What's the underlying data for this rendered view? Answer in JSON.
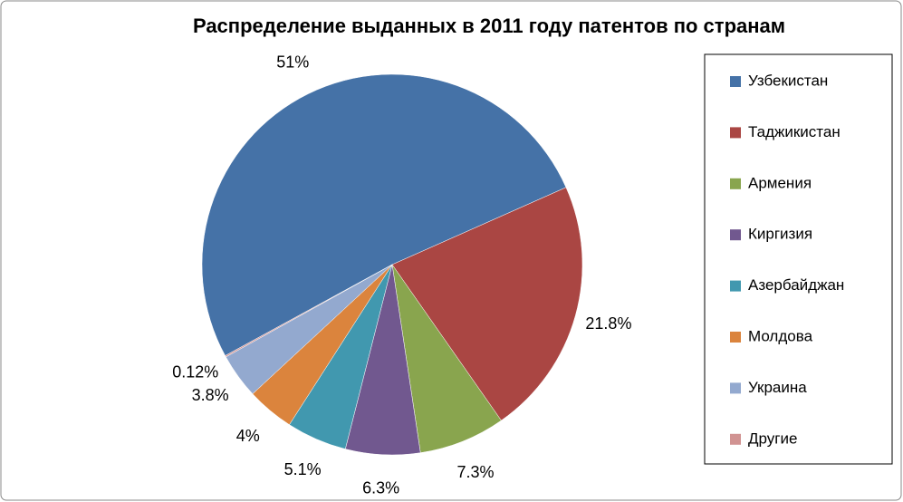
{
  "chart_data": {
    "type": "pie",
    "title": "Распределение выданных в 2011 году патентов по странам",
    "categories": [
      "Узбекистан",
      "Таджикистан",
      "Армения",
      "Киргизия",
      "Азербайджан",
      "Молдова",
      "Украина",
      "Другие"
    ],
    "values": [
      51,
      21.8,
      7.3,
      6.3,
      5.1,
      4,
      3.8,
      0.12
    ],
    "value_labels": [
      "51%",
      "21.8%",
      "7.3%",
      "6.3%",
      "5.1%",
      "4%",
      "3.8%",
      "0.12%"
    ],
    "colors": [
      "#4572a7",
      "#aa4643",
      "#89a54e",
      "#71588f",
      "#4198af",
      "#db843d",
      "#93a9cf",
      "#d19392"
    ],
    "legend": "right"
  }
}
